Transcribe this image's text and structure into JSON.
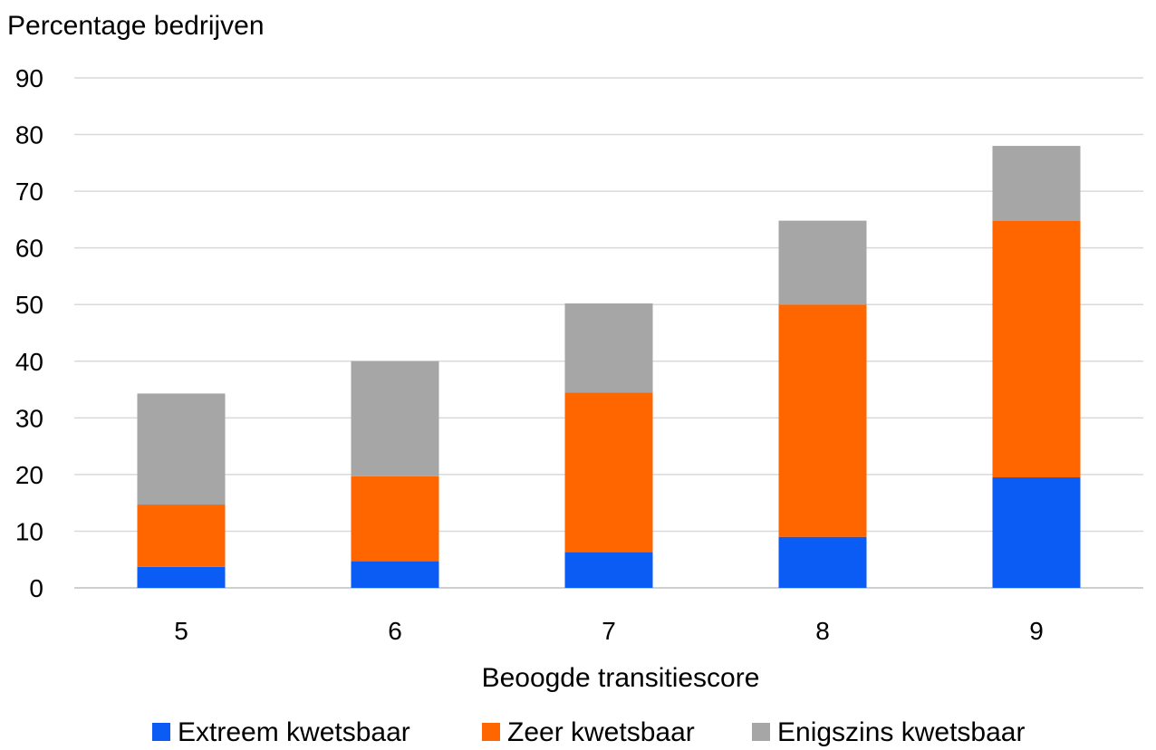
{
  "chart_data": {
    "type": "bar",
    "stacked": true,
    "ylabel": "Percentage bedrijven",
    "xlabel": "Beoogde transitiescore",
    "categories": [
      "5",
      "6",
      "7",
      "8",
      "9"
    ],
    "ylim": [
      0,
      90
    ],
    "yticks": [
      0,
      10,
      20,
      30,
      40,
      50,
      60,
      70,
      80,
      90
    ],
    "grid": true,
    "legend_position": "bottom",
    "series": [
      {
        "name": "Extreem kwetsbaar",
        "color": "#0a5cf5",
        "values": [
          3.7,
          4.7,
          6.3,
          9,
          19.5
        ]
      },
      {
        "name": "Zeer kwetsbaar",
        "color": "#ff6600",
        "values": [
          11,
          15,
          28.2,
          41,
          45.3
        ]
      },
      {
        "name": "Enigszins kwetsbaar",
        "color": "#a6a6a6",
        "values": [
          19.6,
          20.3,
          15.7,
          14.8,
          13.2
        ]
      }
    ]
  }
}
